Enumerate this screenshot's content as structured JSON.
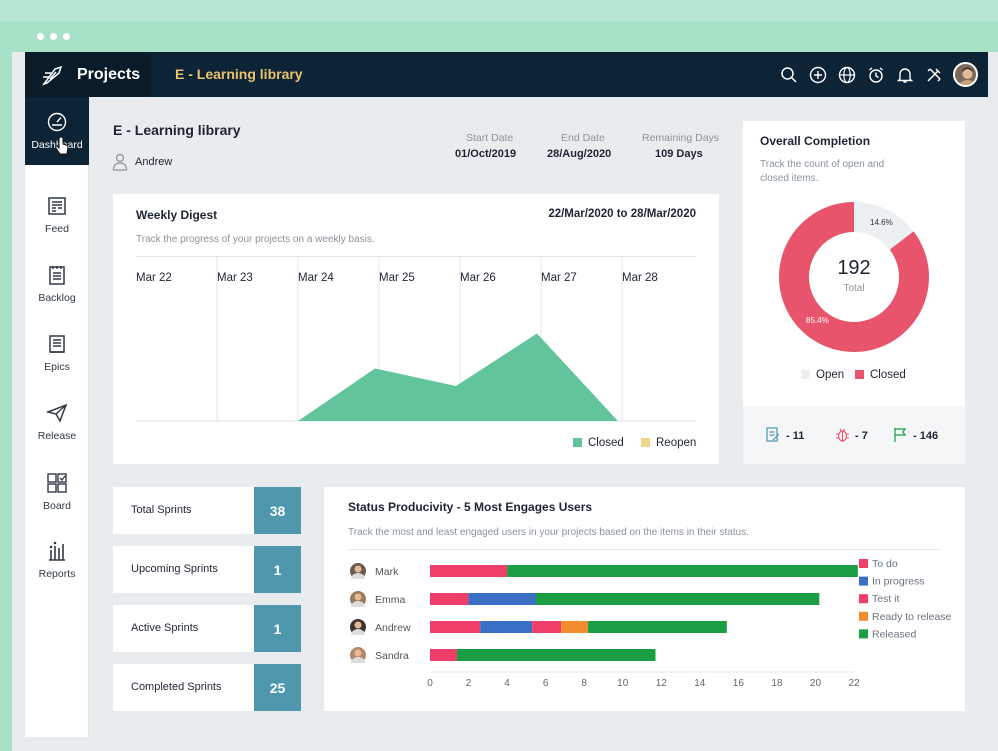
{
  "app": {
    "name": "Projects",
    "project_title": "E - Learning library"
  },
  "sidebar": {
    "items": [
      {
        "label": "Dashboard",
        "icon": "dashboard-icon"
      },
      {
        "label": "Feed",
        "icon": "feed-icon"
      },
      {
        "label": "Backlog",
        "icon": "backlog-icon"
      },
      {
        "label": "Epics",
        "icon": "epics-icon"
      },
      {
        "label": "Release",
        "icon": "release-icon"
      },
      {
        "label": "Board",
        "icon": "board-icon"
      },
      {
        "label": "Reports",
        "icon": "reports-icon"
      }
    ]
  },
  "header": {
    "title": "E - Learning library",
    "owner": "Andrew",
    "start_label": "Start Date",
    "start_value": "01/Oct/2019",
    "end_label": "End Date",
    "end_value": "28/Aug/2020",
    "remaining_label": "Remaining Days",
    "remaining_value": "109 Days"
  },
  "weekly": {
    "title": "Weekly Digest",
    "range": "22/Mar/2020 to 28/Mar/2020",
    "subtitle": "Track the progress of your projects on a weekly basis.",
    "days": [
      "Mar 22",
      "Mar 23",
      "Mar 24",
      "Mar 25",
      "Mar 26",
      "Mar 27",
      "Mar 28"
    ],
    "legend_closed": "Closed",
    "legend_reopen": "Reopen"
  },
  "completion": {
    "title": "Overall Completion",
    "subtitle_line1": "Track the count of open and",
    "subtitle_line2": "closed items.",
    "total": "192",
    "total_label": "Total",
    "open_pct": "14.6%",
    "closed_pct": "85.4%",
    "legend_open": "Open",
    "legend_closed": "Closed",
    "stat_tasks": "- 11",
    "stat_bugs": "- 7",
    "stat_milestones": "- 146"
  },
  "sprints": [
    {
      "label": "Total Sprints",
      "value": "38"
    },
    {
      "label": "Upcoming Sprints",
      "value": "1"
    },
    {
      "label": "Active Sprints",
      "value": "1"
    },
    {
      "label": "Completed Sprints",
      "value": "25"
    }
  ],
  "productivity": {
    "title": "Status Producivity - 5 Most Engages Users",
    "subtitle": "Track the most and least engaged users in your projects based on the items in their status."
  },
  "colors": {
    "closed": "#62c49b",
    "reopen": "#f0d58a",
    "todo": "#f03e6a",
    "inprogress": "#3b6fc4",
    "testit": "#f03e6a",
    "ready": "#f28c2e",
    "released": "#1a9e44",
    "sprint": "#4e97ad"
  },
  "chart_data": [
    {
      "type": "area",
      "x": [
        "Mar 22",
        "Mar 23",
        "Mar 24",
        "Mar 25",
        "Mar 26",
        "Mar 27",
        "Mar 28"
      ],
      "series": [
        {
          "name": "Closed",
          "values": [
            0,
            0,
            0,
            3,
            2,
            5,
            0
          ]
        },
        {
          "name": "Reopen",
          "values": [
            0,
            0,
            0,
            0,
            0,
            0,
            0
          ]
        }
      ]
    },
    {
      "type": "pie",
      "categories": [
        "Open",
        "Closed"
      ],
      "values": [
        14.6,
        85.4
      ],
      "labels": [
        "14.6%",
        "85.4%"
      ]
    },
    {
      "type": "bar",
      "orientation": "horizontal",
      "stacked": true,
      "categories": [
        "Mark",
        "Emma",
        "Andrew",
        "Sandra"
      ],
      "series": [
        {
          "name": "To do",
          "values": [
            4,
            2,
            2.6,
            1.4
          ]
        },
        {
          "name": "In progress",
          "values": [
            0,
            3.5,
            2.7,
            0
          ]
        },
        {
          "name": "Test it",
          "values": [
            0,
            0,
            1.5,
            0
          ]
        },
        {
          "name": "Ready to release",
          "values": [
            0,
            0,
            1.4,
            0
          ]
        },
        {
          "name": "Released",
          "values": [
            18.2,
            14.7,
            7.2,
            10.3
          ]
        }
      ],
      "xticks": [
        "0",
        "2",
        "4",
        "6",
        "8",
        "10",
        "12",
        "14",
        "16",
        "18",
        "20",
        "22"
      ],
      "xlim": [
        0,
        22
      ]
    }
  ]
}
